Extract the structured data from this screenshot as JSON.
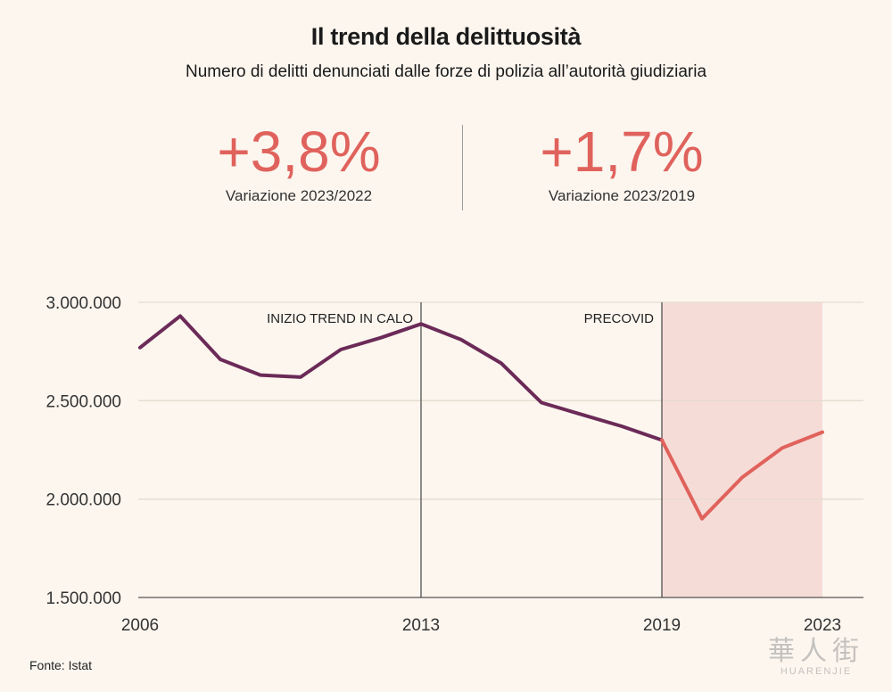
{
  "title": "Il trend della delittuosità",
  "subtitle": "Numero di delitti denunciati dalle forze di polizia all’autorità giudiziaria",
  "kpis": [
    {
      "value": "+3,8%",
      "label": "Variazione 2023/2022"
    },
    {
      "value": "+1,7%",
      "label": "Variazione 2023/2019"
    }
  ],
  "source": "Fonte: Istat",
  "watermark": {
    "main": "華人街",
    "sub": "HUARENJIE"
  },
  "colors": {
    "pre": "#6b2a57",
    "post": "#e0625c",
    "shade": "#f6dcd7",
    "grid": "#e6dccf",
    "axis": "#555555",
    "ref_line": "#444444"
  },
  "chart_data": {
    "type": "line",
    "title": "Il trend della delittuosità",
    "ylim": [
      1500000,
      3000000
    ],
    "xlim": [
      2006,
      2023
    ],
    "y_ticks": [
      {
        "value": 3000000,
        "label": "3.000.000"
      },
      {
        "value": 2500000,
        "label": "2.500.000"
      },
      {
        "value": 2000000,
        "label": "2.000.000"
      },
      {
        "value": 1500000,
        "label": "1.500.000"
      }
    ],
    "x_ticks": [
      {
        "value": 2006,
        "label": "2006"
      },
      {
        "value": 2013,
        "label": "2013"
      },
      {
        "value": 2019,
        "label": "2019"
      },
      {
        "value": 2023,
        "label": "2023"
      }
    ],
    "x": [
      2006,
      2007,
      2008,
      2009,
      2010,
      2011,
      2012,
      2013,
      2014,
      2015,
      2016,
      2017,
      2018,
      2019,
      2020,
      2021,
      2022,
      2023
    ],
    "values": [
      2770000,
      2930000,
      2710000,
      2630000,
      2620000,
      2760000,
      2820000,
      2890000,
      2810000,
      2690000,
      2490000,
      2430000,
      2370000,
      2300000,
      1900000,
      2110000,
      2260000,
      2340000
    ],
    "split_year": 2019,
    "shaded_range": [
      2019,
      2023
    ],
    "annotations": [
      {
        "x": 2013,
        "text": "INIZIO TREND IN CALO"
      },
      {
        "x": 2019,
        "text": "PRECOVID"
      }
    ],
    "grid": true
  }
}
